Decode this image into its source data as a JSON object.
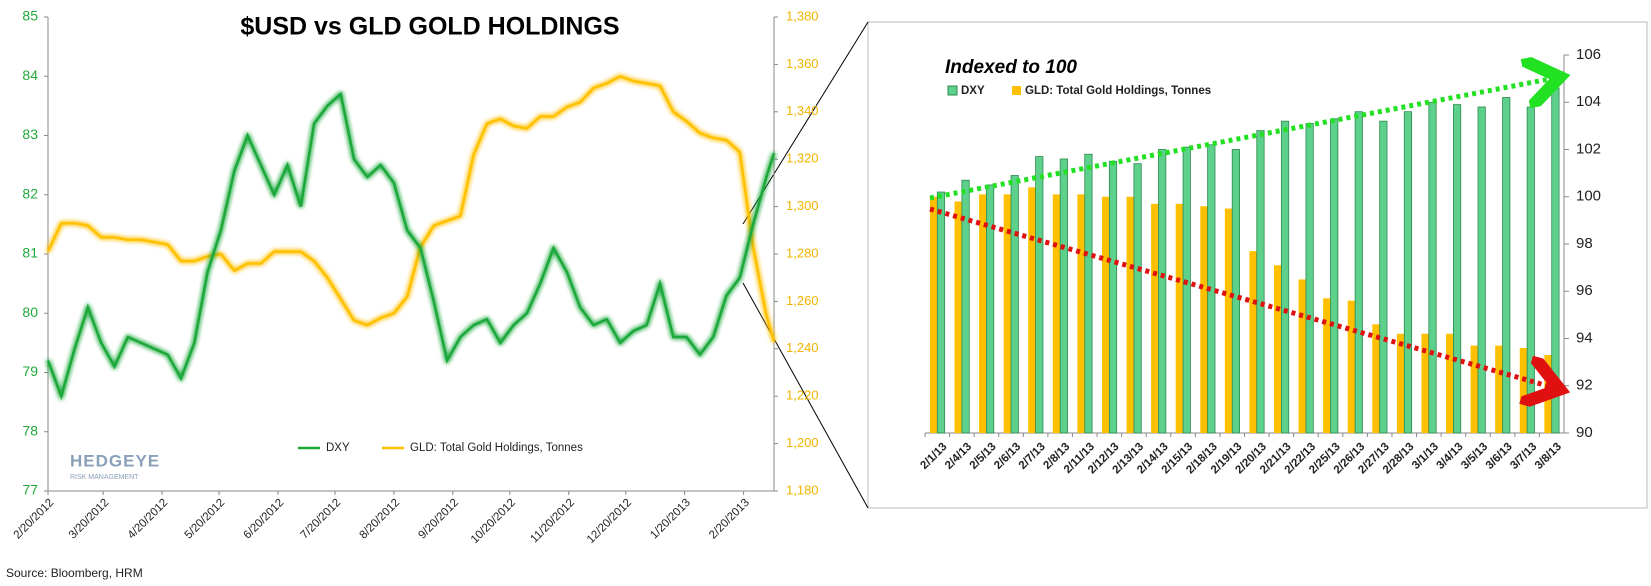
{
  "chart_data": [
    {
      "type": "line",
      "title": "$USD vs GLD GOLD HOLDINGS",
      "logo": "HEDGEYE",
      "logo_sub": "RISK MANAGEMENT",
      "source": "Source: Bloomberg, HRM",
      "x": [
        "2012-02-20",
        "2012-02-27",
        "2012-03-05",
        "2012-03-12",
        "2012-03-19",
        "2012-03-26",
        "2012-04-02",
        "2012-04-09",
        "2012-04-16",
        "2012-04-23",
        "2012-04-30",
        "2012-05-07",
        "2012-05-14",
        "2012-05-21",
        "2012-05-28",
        "2012-06-04",
        "2012-06-11",
        "2012-06-18",
        "2012-06-25",
        "2012-07-02",
        "2012-07-09",
        "2012-07-16",
        "2012-07-23",
        "2012-07-30",
        "2012-08-06",
        "2012-08-13",
        "2012-08-20",
        "2012-08-27",
        "2012-09-03",
        "2012-09-10",
        "2012-09-17",
        "2012-09-24",
        "2012-10-01",
        "2012-10-08",
        "2012-10-15",
        "2012-10-22",
        "2012-10-29",
        "2012-11-05",
        "2012-11-12",
        "2012-11-19",
        "2012-11-26",
        "2012-12-03",
        "2012-12-10",
        "2012-12-17",
        "2012-12-24",
        "2012-12-31",
        "2013-01-07",
        "2013-01-14",
        "2013-01-21",
        "2013-01-28",
        "2013-02-04",
        "2013-02-11",
        "2013-02-18",
        "2013-02-25",
        "2013-03-04",
        "2013-03-08"
      ],
      "xlim": [
        "2012-02-20",
        "2013-03-08"
      ],
      "xticks": [
        {
          "value": "2012-02-20",
          "label": "2/20/2012"
        },
        {
          "value": "2012-03-20",
          "label": "3/20/2012"
        },
        {
          "value": "2012-04-20",
          "label": "4/20/2012"
        },
        {
          "value": "2012-05-20",
          "label": "5/20/2012"
        },
        {
          "value": "2012-06-20",
          "label": "6/20/2012"
        },
        {
          "value": "2012-07-20",
          "label": "7/20/2012"
        },
        {
          "value": "2012-08-20",
          "label": "8/20/2012"
        },
        {
          "value": "2012-09-20",
          "label": "9/20/2012"
        },
        {
          "value": "2012-10-20",
          "label": "10/20/2012"
        },
        {
          "value": "2012-11-20",
          "label": "11/20/2012"
        },
        {
          "value": "2012-12-20",
          "label": "12/20/2012"
        },
        {
          "value": "2013-01-20",
          "label": "1/20/2013"
        },
        {
          "value": "2013-02-20",
          "label": "2/20/2013"
        }
      ],
      "ylim": [
        77,
        85
      ],
      "yticks": [
        77,
        78,
        79,
        80,
        81,
        82,
        83,
        84,
        85
      ],
      "y2lim": [
        1180,
        1380
      ],
      "y2ticks": [
        {
          "value": 1180,
          "label": "1,180"
        },
        {
          "value": 1200,
          "label": "1,200"
        },
        {
          "value": 1220,
          "label": "1,220"
        },
        {
          "value": 1240,
          "label": "1,240"
        },
        {
          "value": 1260,
          "label": "1,260"
        },
        {
          "value": 1280,
          "label": "1,280"
        },
        {
          "value": 1300,
          "label": "1,300"
        },
        {
          "value": 1320,
          "label": "1,320"
        },
        {
          "value": 1340,
          "label": "1,340"
        },
        {
          "value": 1360,
          "label": "1,360"
        },
        {
          "value": 1380,
          "label": "1,380"
        }
      ],
      "series": [
        {
          "name": "DXY",
          "color": "#1fa83a",
          "values": [
            79.2,
            78.6,
            79.4,
            80.1,
            79.5,
            79.1,
            79.6,
            79.5,
            79.4,
            79.3,
            78.9,
            79.5,
            80.7,
            81.4,
            82.4,
            83.0,
            82.5,
            82.0,
            82.5,
            81.8,
            83.2,
            83.5,
            83.7,
            82.6,
            82.3,
            82.5,
            82.2,
            81.4,
            81.1,
            80.2,
            79.2,
            79.6,
            79.8,
            79.9,
            79.5,
            79.8,
            80.0,
            80.5,
            81.1,
            80.7,
            80.1,
            79.8,
            79.9,
            79.5,
            79.7,
            79.8,
            80.5,
            79.6,
            79.6,
            79.3,
            79.6,
            80.3,
            80.6,
            81.5,
            82.3,
            82.7
          ]
        },
        {
          "name": "GLD: Total Gold Holdings, Tonnes",
          "color": "#ffc000",
          "axis": "y2",
          "values": [
            1281,
            1293,
            1293,
            1292,
            1287,
            1287,
            1286,
            1286,
            1285,
            1284,
            1277,
            1277,
            1279,
            1280,
            1273,
            1276,
            1276,
            1281,
            1281,
            1281,
            1277,
            1270,
            1261,
            1252,
            1250,
            1253,
            1255,
            1262,
            1283,
            1292,
            1294,
            1296,
            1322,
            1335,
            1337,
            1334,
            1333,
            1338,
            1338,
            1342,
            1344,
            1350,
            1352,
            1355,
            1353,
            1352,
            1351,
            1340,
            1336,
            1331,
            1329,
            1328,
            1323,
            1283,
            1254,
            1243
          ]
        }
      ]
    },
    {
      "type": "bar",
      "title": "Indexed to 100",
      "categories": [
        "2/1/13",
        "2/4/13",
        "2/5/13",
        "2/6/13",
        "2/7/13",
        "2/8/13",
        "2/11/13",
        "2/12/13",
        "2/13/13",
        "2/14/13",
        "2/15/13",
        "2/18/13",
        "2/19/13",
        "2/20/13",
        "2/21/13",
        "2/22/13",
        "2/25/13",
        "2/26/13",
        "2/27/13",
        "2/28/13",
        "3/1/13",
        "3/4/13",
        "3/5/13",
        "3/6/13",
        "3/7/13",
        "3/8/13"
      ],
      "ylim": [
        90,
        106
      ],
      "yticks": [
        90,
        92,
        94,
        96,
        98,
        100,
        102,
        104,
        106
      ],
      "series": [
        {
          "name": "DXY",
          "color": "#5dd08c",
          "values": [
            100.2,
            100.7,
            100.5,
            100.9,
            101.7,
            101.6,
            101.8,
            101.5,
            101.4,
            102.0,
            102.1,
            102.2,
            102.0,
            102.8,
            103.2,
            103.1,
            103.3,
            103.6,
            103.2,
            103.6,
            104.0,
            103.9,
            103.8,
            104.2,
            103.8,
            104.6
          ]
        },
        {
          "name": "GLD: Total Gold Holdings, Tonnes",
          "color": "#ffc000",
          "values": [
            100.0,
            99.8,
            100.1,
            100.1,
            100.4,
            100.1,
            100.1,
            100.0,
            100.0,
            99.7,
            99.7,
            99.6,
            99.5,
            97.7,
            97.1,
            96.5,
            95.7,
            95.6,
            94.6,
            94.2,
            94.2,
            94.2,
            93.7,
            93.7,
            93.6,
            93.3
          ]
        }
      ]
    }
  ]
}
